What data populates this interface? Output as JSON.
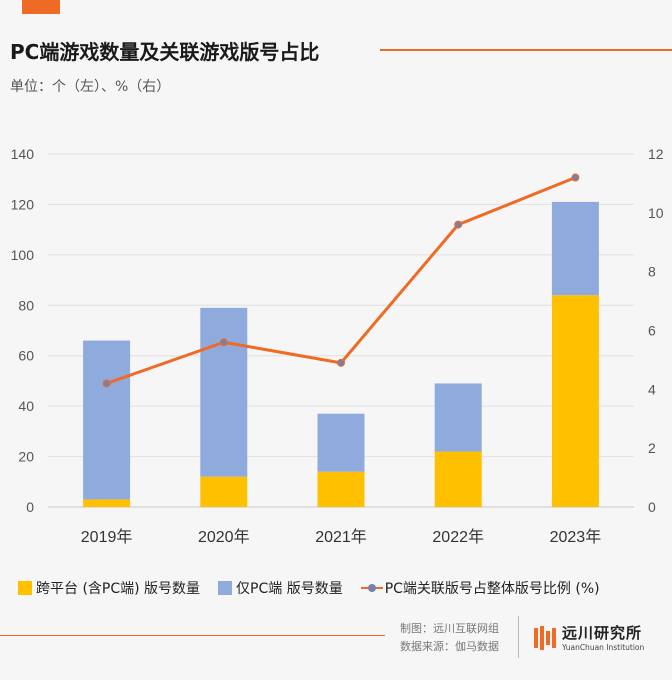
{
  "title": "PC端游戏数量及关联游戏版号占比",
  "unit_label": "单位：个（左）、%（右）",
  "chart_data": {
    "type": "bar",
    "stacked": true,
    "categories": [
      "2019年",
      "2020年",
      "2021年",
      "2022年",
      "2023年"
    ],
    "series": [
      {
        "name": "跨平台 (含PC端) 版号数量",
        "values": [
          3,
          12,
          14,
          22,
          84
        ],
        "color": "#ffc000",
        "axis": "left"
      },
      {
        "name": "仅PC端 版号数量",
        "values": [
          63,
          67,
          23,
          27,
          37
        ],
        "color": "#8faadc",
        "axis": "left"
      },
      {
        "name": "PC端关联版号占整体版号比例 (%)",
        "type": "line",
        "values": [
          4.2,
          5.6,
          4.9,
          9.6,
          11.2
        ],
        "color": "#ef6a25",
        "marker_color": "#7b7fa8",
        "axis": "right"
      }
    ],
    "ylim_left": [
      0,
      140
    ],
    "yticks_left": [
      "0",
      "20",
      "40",
      "60",
      "80",
      "100",
      "120",
      "140"
    ],
    "ylim_right": [
      0,
      12
    ],
    "yticks_right": [
      "0",
      "2",
      "4",
      "6",
      "8",
      "10",
      "12"
    ],
    "grid": true,
    "legend_position": "bottom"
  },
  "credits": {
    "maker": "制图：远川互联网组",
    "source": "数据来源：伽马数据"
  },
  "brand": {
    "name_cn": "远川研究所",
    "name_en": "YuanChuan Institution",
    "accent": "#ef6a25"
  }
}
